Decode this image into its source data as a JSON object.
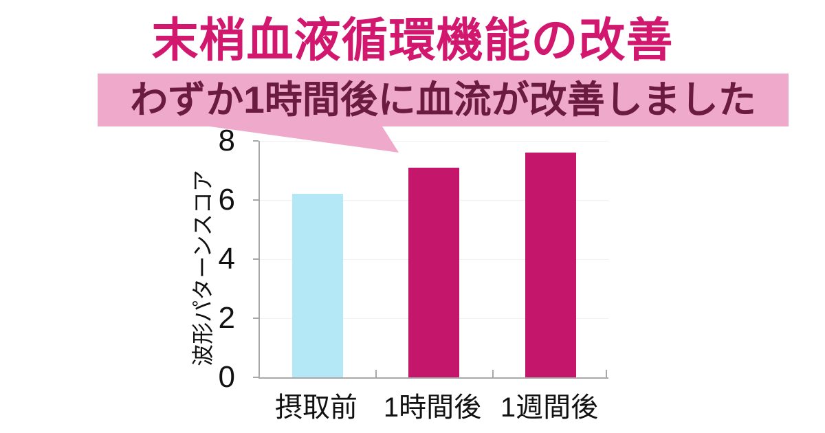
{
  "title": {
    "text": "末梢血液循環機能の改善",
    "color": "#d2186e"
  },
  "callout": {
    "text": "わずか1時間後に血流が改善しました",
    "bg_color": "#efa9ca",
    "text_color": "#6b1a40"
  },
  "chart_data": {
    "type": "bar",
    "title": "",
    "categories": [
      "摂取前",
      "1時間後",
      "1週間後"
    ],
    "values": [
      6.2,
      7.1,
      7.6
    ],
    "bar_colors": [
      "#b5e8f7",
      "#c4176b",
      "#c4176b"
    ],
    "xlabel": "",
    "ylabel": "波形パターンスコア",
    "ylim": [
      0,
      8
    ],
    "yticks": [
      "0",
      "2",
      "4",
      "6",
      "8"
    ],
    "grid": true,
    "legend": false,
    "axis_color": "#a8a8a8",
    "grid_color": "#f1f1f1",
    "tick_label_color": "#111111"
  }
}
